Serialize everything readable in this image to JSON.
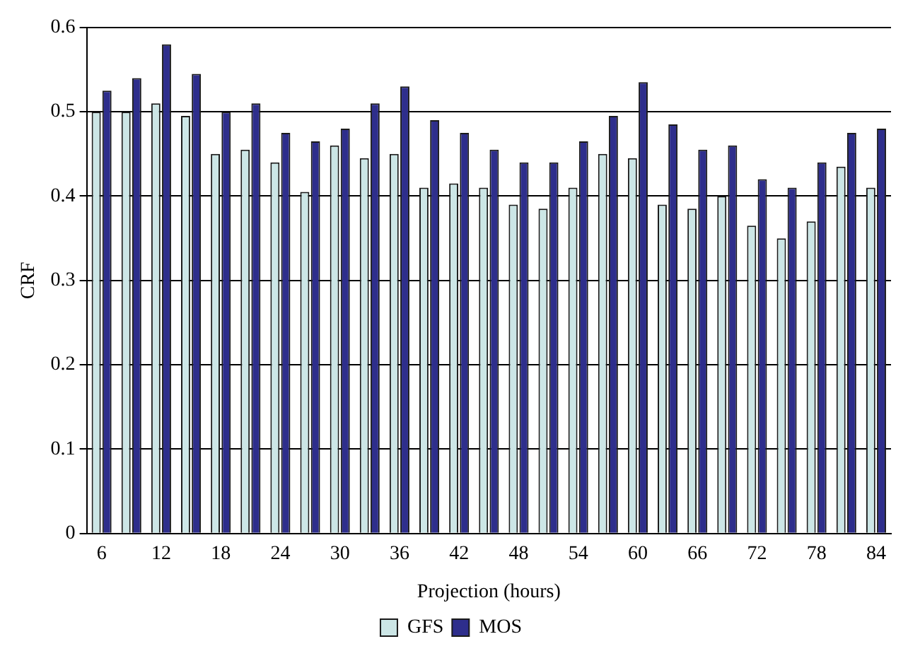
{
  "chart_data": {
    "type": "bar",
    "xlabel": "Projection (hours)",
    "ylabel": "CRF",
    "categories": [
      "6",
      null,
      "12",
      null,
      "18",
      null,
      "24",
      null,
      "30",
      null,
      "36",
      null,
      "42",
      null,
      "48",
      null,
      "54",
      null,
      "60",
      null,
      "66",
      null,
      "72",
      null,
      "78",
      null,
      "84"
    ],
    "series": [
      {
        "name": "GFS",
        "color": "#cce6e6",
        "values": [
          0.5,
          0.5,
          0.51,
          0.495,
          0.45,
          0.455,
          0.44,
          0.405,
          0.46,
          0.445,
          0.45,
          0.41,
          0.415,
          0.41,
          0.39,
          0.385,
          0.41,
          0.45,
          0.445,
          0.39,
          0.385,
          0.4,
          0.365,
          0.35,
          0.37,
          0.435,
          0.41
        ]
      },
      {
        "name": "MOS",
        "color": "#2e2e8c",
        "values": [
          0.525,
          0.54,
          0.58,
          0.545,
          0.5,
          0.51,
          0.475,
          0.465,
          0.48,
          0.51,
          0.53,
          0.49,
          0.475,
          0.455,
          0.44,
          0.44,
          0.465,
          0.495,
          0.535,
          0.485,
          0.455,
          0.46,
          0.42,
          0.41,
          0.44,
          0.475,
          0.48
        ]
      }
    ],
    "ylim": [
      0,
      0.6
    ],
    "yticks": [
      0,
      0.1,
      0.2,
      0.3,
      0.4,
      0.5,
      0.6
    ],
    "grid": "y",
    "legend": "bottom"
  }
}
